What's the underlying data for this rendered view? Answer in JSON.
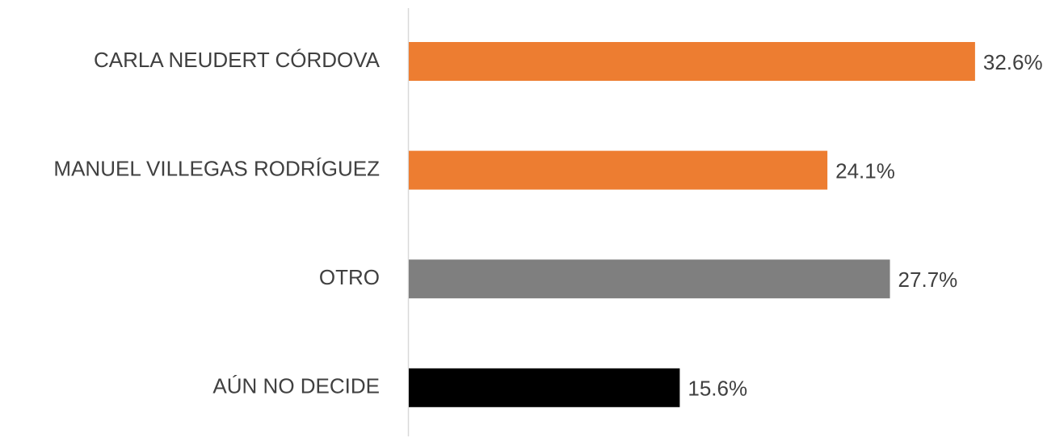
{
  "chart_data": {
    "type": "bar",
    "orientation": "horizontal",
    "categories": [
      "CARLA NEUDERT CÓRDOVA",
      "MANUEL VILLEGAS RODRÍGUEZ",
      "OTRO",
      "AÚN NO DECIDE"
    ],
    "values": [
      32.6,
      24.1,
      27.7,
      15.6
    ],
    "value_labels": [
      "32.6%",
      "24.1%",
      "27.7%",
      "15.6%"
    ],
    "colors": [
      "#ed7d31",
      "#ed7d31",
      "#7f7f7f",
      "#000000"
    ]
  }
}
